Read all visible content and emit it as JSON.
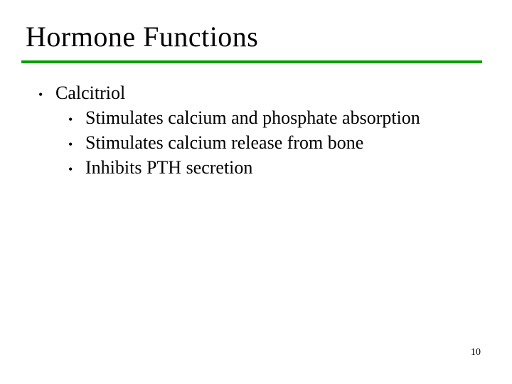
{
  "title": "Hormone Functions",
  "rule_color": "#00a000",
  "bullets": {
    "lvl1": "Calcitriol",
    "lvl2": [
      "Stimulates calcium and phosphate absorption",
      "Stimulates calcium release from bone",
      "Inhibits PTH secretion"
    ]
  },
  "page_number": "10",
  "bullet_glyph": "•"
}
